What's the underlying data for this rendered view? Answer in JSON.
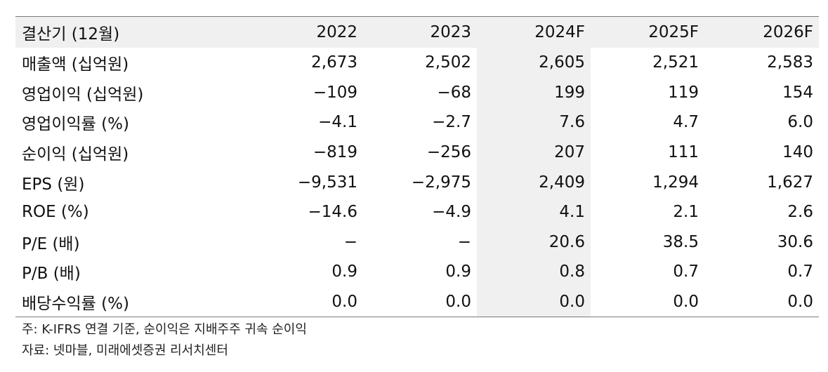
{
  "table": {
    "header_label": "결산기 (12월)",
    "columns": [
      "2022",
      "2023",
      "2024F",
      "2025F",
      "2026F"
    ],
    "rows": [
      {
        "label": "매출액 (십억원)",
        "values": [
          "2,673",
          "2,502",
          "2,605",
          "2,521",
          "2,583"
        ]
      },
      {
        "label": "영업이익 (십억원)",
        "values": [
          "−109",
          "−68",
          "199",
          "119",
          "154"
        ]
      },
      {
        "label": "영업이익률 (%)",
        "values": [
          "−4.1",
          "−2.7",
          "7.6",
          "4.7",
          "6.0"
        ]
      },
      {
        "label": "순이익 (십억원)",
        "values": [
          "−819",
          "−256",
          "207",
          "111",
          "140"
        ]
      },
      {
        "label": "EPS (원)",
        "values": [
          "−9,531",
          "−2,975",
          "2,409",
          "1,294",
          "1,627"
        ]
      },
      {
        "label": "ROE (%)",
        "values": [
          "−14.6",
          "−4.9",
          "4.1",
          "2.1",
          "2.6"
        ]
      },
      {
        "label": "P/E (배)",
        "values": [
          "−",
          "−",
          "20.6",
          "38.5",
          "30.6"
        ]
      },
      {
        "label": "P/B (배)",
        "values": [
          "0.9",
          "0.9",
          "0.8",
          "0.7",
          "0.7"
        ]
      },
      {
        "label": "배당수익률 (%)",
        "values": [
          "0.0",
          "0.0",
          "0.0",
          "0.0",
          "0.0"
        ]
      }
    ],
    "highlight_color": "#f0f0f0"
  },
  "notes": {
    "footnote": "주: K-IFRS 연결 기준, 순이익은 지배주주 귀속 순이익",
    "source": "자료: 넷마블, 미래에셋증권 리서치센터"
  }
}
